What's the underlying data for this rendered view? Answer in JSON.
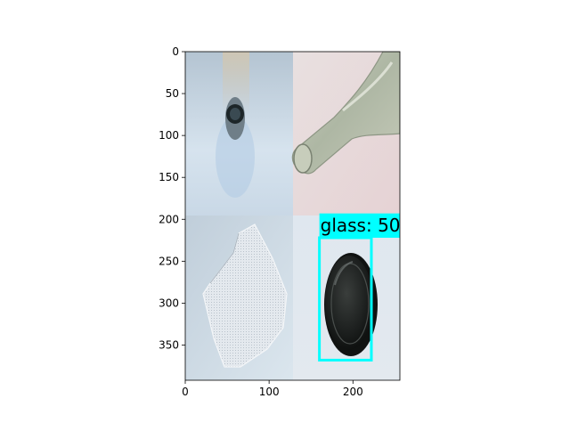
{
  "chart_data": {
    "type": "image",
    "xlim": [
      0,
      256
    ],
    "ylim": [
      392,
      0
    ],
    "x_ticks": [
      "0",
      "100",
      "200"
    ],
    "y_ticks": [
      "0",
      "50",
      "100",
      "150",
      "200",
      "250",
      "300",
      "350"
    ],
    "grid": false,
    "tiles": [
      {
        "name": "bottle-neck-top-view",
        "x": [
          0,
          128
        ],
        "y": [
          0,
          196
        ],
        "colors": {
          "bg_top": "#b8c8d6",
          "bg_bottom": "#dde8f0",
          "object": "#1e2a2c"
        }
      },
      {
        "name": "green-glass-bottle",
        "x": [
          128,
          256
        ],
        "y": [
          0,
          196
        ],
        "colors": {
          "bg_top": "#e2d8d8",
          "bg_bottom": "#ead6d8",
          "object": "#b9c0b0"
        }
      },
      {
        "name": "white-mesh-fabric",
        "x": [
          0,
          128
        ],
        "y": [
          196,
          392
        ],
        "colors": {
          "bg_top": "#c5d3df",
          "bg_bottom": "#dbe6ee",
          "object": "#e6ebf0"
        }
      },
      {
        "name": "black-glass-lid",
        "x": [
          128,
          256
        ],
        "y": [
          196,
          392
        ],
        "colors": {
          "bg_top": "#dfe6ee",
          "bg_bottom": "#e2e9ef",
          "object": "#1c1e1e"
        }
      }
    ],
    "detection": {
      "label": "glass: 50",
      "box": {
        "x0": 160,
        "x1": 222,
        "y0": 222,
        "y1": 368
      },
      "label_box": {
        "x0": 160,
        "y0": 193,
        "y1": 222
      },
      "color": "#00ffff"
    }
  }
}
